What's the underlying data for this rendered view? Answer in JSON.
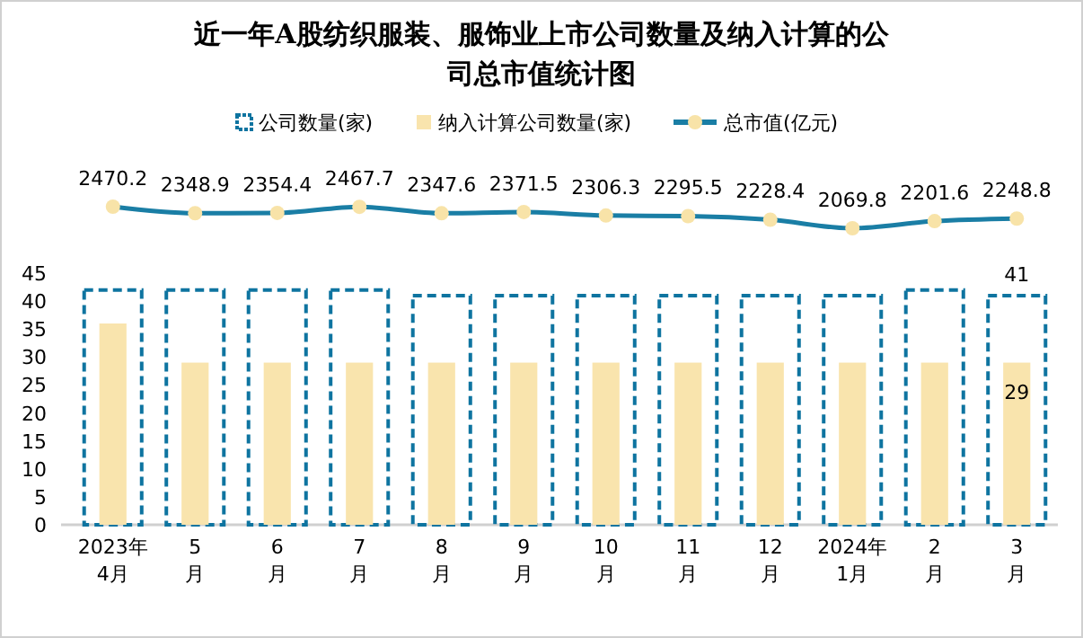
{
  "chart_data": [
    {
      "type": "line",
      "title": "近一年A股纺织服装、服饰业上市公司数量及纳入计算的公司总市值统计图",
      "categories": [
        null,
        null,
        null,
        null,
        null,
        null,
        null,
        null,
        null,
        null,
        null,
        null
      ],
      "series": [
        {
          "name": "总市值(亿元)",
          "color": "#1a7ea5",
          "values": [
            2470.2,
            2348.9,
            2354.4,
            2467.7,
            2347.6,
            2371.5,
            2306.3,
            2295.5,
            2228.4,
            2069.8,
            2201.6,
            2248.8
          ]
        }
      ],
      "marker": "circle",
      "data_labels": true,
      "legend": "top"
    },
    {
      "type": "bar",
      "categories": [
        "2023年\n4月",
        "5\n月",
        "6\n月",
        "7\n月",
        "8\n月",
        "9\n月",
        "10\n月",
        "11\n月",
        "12\n月",
        "2024年\n1月",
        "2\n月",
        "3\n月"
      ],
      "series": [
        {
          "name": "公司数量(家)",
          "color": "#0e74a0",
          "line_style": "dashed",
          "values": [
            42,
            42,
            42,
            42,
            41,
            41,
            41,
            41,
            41,
            41,
            42,
            41
          ],
          "value_labels": [
            null,
            null,
            null,
            null,
            null,
            null,
            null,
            null,
            null,
            null,
            null,
            "41"
          ]
        },
        {
          "name": "纳入计算公司数量(家)",
          "color": "#f9e4ad",
          "values": [
            36,
            29,
            29,
            29,
            29,
            29,
            29,
            29,
            29,
            29,
            29,
            29
          ],
          "value_labels": [
            null,
            null,
            null,
            null,
            null,
            null,
            null,
            null,
            null,
            null,
            null,
            "29"
          ]
        }
      ],
      "ylim": [
        0,
        45
      ],
      "yticks": [
        0,
        5,
        10,
        15,
        20,
        25,
        30,
        35,
        40,
        45
      ],
      "legend": "top"
    }
  ]
}
